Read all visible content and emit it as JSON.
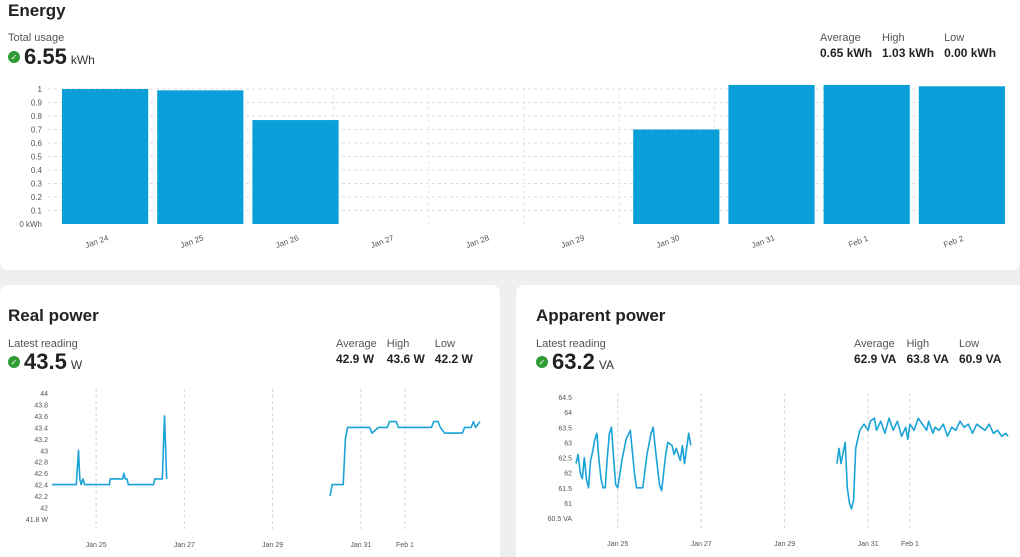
{
  "energy": {
    "title": "Energy",
    "total_label": "Total usage",
    "total_value": "6.55",
    "total_unit": "kWh",
    "stats": [
      {
        "label": "Average",
        "value": "0.65 kWh"
      },
      {
        "label": "High",
        "value": "1.03 kWh"
      },
      {
        "label": "Low",
        "value": "0.00 kWh"
      }
    ]
  },
  "real_power": {
    "title": "Real power",
    "latest_label": "Latest reading",
    "latest_value": "43.5",
    "latest_unit": "W",
    "stats": [
      {
        "label": "Average",
        "value": "42.9 W"
      },
      {
        "label": "High",
        "value": "43.6 W"
      },
      {
        "label": "Low",
        "value": "42.2 W"
      }
    ]
  },
  "apparent_power": {
    "title": "Apparent power",
    "latest_label": "Latest reading",
    "latest_value": "63.2",
    "latest_unit": "VA",
    "stats": [
      {
        "label": "Average",
        "value": "62.9 VA"
      },
      {
        "label": "High",
        "value": "63.8 VA"
      },
      {
        "label": "Low",
        "value": "60.9 VA"
      }
    ]
  },
  "colors": {
    "bar": "#0a9fd8",
    "line": "#1aa3d8",
    "status_ok": "#2e9b34"
  },
  "chart_data": [
    {
      "id": "energy",
      "type": "bar",
      "categories": [
        "Jan 24",
        "Jan 25",
        "Jan 26",
        "Jan 27",
        "Jan 28",
        "Jan 29",
        "Jan 30",
        "Jan 31",
        "Feb 1",
        "Feb 2"
      ],
      "values": [
        1.0,
        0.99,
        0.77,
        0,
        0,
        0,
        0.7,
        1.03,
        1.03,
        1.02
      ],
      "yticks": [
        "0 kWh",
        "0.1",
        "0.2",
        "0.3",
        "0.4",
        "0.5",
        "0.6",
        "0.7",
        "0.8",
        "0.9",
        "1"
      ],
      "ylim": [
        0,
        1.0
      ],
      "grid": true
    },
    {
      "id": "real_power",
      "type": "line",
      "xticks": [
        {
          "t": 1,
          "label": "Jan 25"
        },
        {
          "t": 3,
          "label": "Jan 27"
        },
        {
          "t": 5,
          "label": "Jan 29"
        },
        {
          "t": 7,
          "label": "Jan 31"
        },
        {
          "t": 8,
          "label": "Feb 1"
        }
      ],
      "yticks": [
        "41.8 W",
        "42",
        "42.2",
        "42.4",
        "42.6",
        "42.8",
        "43",
        "43.2",
        "43.4",
        "43.6",
        "43.8",
        "44"
      ],
      "ylim": [
        41.8,
        44
      ],
      "segments": [
        [
          [
            0,
            42.4
          ],
          [
            0.55,
            42.4
          ],
          [
            0.6,
            43.0
          ],
          [
            0.63,
            42.5
          ],
          [
            0.66,
            42.4
          ],
          [
            0.7,
            42.5
          ],
          [
            0.74,
            42.4
          ],
          [
            1.3,
            42.4
          ],
          [
            1.32,
            42.5
          ],
          [
            1.6,
            42.5
          ],
          [
            1.63,
            42.6
          ],
          [
            1.66,
            42.5
          ],
          [
            1.7,
            42.5
          ],
          [
            1.73,
            42.4
          ],
          [
            2.3,
            42.4
          ],
          [
            2.33,
            42.5
          ],
          [
            2.5,
            42.5
          ],
          [
            2.55,
            43.6
          ],
          [
            2.6,
            42.5
          ]
        ],
        [
          [
            6.3,
            42.2
          ],
          [
            6.35,
            42.4
          ],
          [
            6.6,
            42.4
          ],
          [
            6.65,
            43.2
          ],
          [
            6.7,
            43.4
          ],
          [
            7.2,
            43.4
          ],
          [
            7.25,
            43.3
          ],
          [
            7.4,
            43.4
          ],
          [
            7.6,
            43.4
          ],
          [
            7.65,
            43.5
          ],
          [
            7.8,
            43.5
          ],
          [
            7.85,
            43.4
          ],
          [
            8.6,
            43.4
          ],
          [
            8.65,
            43.5
          ],
          [
            8.75,
            43.5
          ],
          [
            8.8,
            43.4
          ],
          [
            8.9,
            43.3
          ],
          [
            9.3,
            43.3
          ],
          [
            9.35,
            43.4
          ],
          [
            9.5,
            43.4
          ],
          [
            9.55,
            43.5
          ],
          [
            9.6,
            43.4
          ],
          [
            9.7,
            43.5
          ]
        ]
      ]
    },
    {
      "id": "apparent_power",
      "type": "line",
      "xticks": [
        {
          "t": 1,
          "label": "Jan 25"
        },
        {
          "t": 3,
          "label": "Jan 27"
        },
        {
          "t": 5,
          "label": "Jan 29"
        },
        {
          "t": 7,
          "label": "Jan 31"
        },
        {
          "t": 8,
          "label": "Feb 1"
        }
      ],
      "yticks": [
        "60.5 VA",
        "61",
        "61.5",
        "62",
        "62.5",
        "63",
        "63.5",
        "64",
        "64.5"
      ],
      "ylim": [
        60.5,
        64.5
      ],
      "segments": [
        [
          [
            0,
            62.3
          ],
          [
            0.05,
            62.6
          ],
          [
            0.1,
            62.0
          ],
          [
            0.15,
            61.8
          ],
          [
            0.2,
            62.5
          ],
          [
            0.25,
            61.8
          ],
          [
            0.3,
            61.5
          ],
          [
            0.35,
            62.4
          ],
          [
            0.4,
            62.7
          ],
          [
            0.45,
            63.1
          ],
          [
            0.5,
            63.3
          ],
          [
            0.55,
            62.4
          ],
          [
            0.6,
            61.8
          ],
          [
            0.65,
            61.5
          ],
          [
            0.7,
            61.5
          ],
          [
            0.75,
            62.5
          ],
          [
            0.8,
            63.3
          ],
          [
            0.85,
            63.5
          ],
          [
            0.9,
            62.5
          ],
          [
            0.95,
            61.6
          ],
          [
            1.0,
            61.5
          ],
          [
            1.1,
            62.4
          ],
          [
            1.2,
            63.1
          ],
          [
            1.3,
            63.4
          ],
          [
            1.4,
            62.0
          ],
          [
            1.45,
            61.5
          ],
          [
            1.6,
            61.5
          ],
          [
            1.7,
            62.6
          ],
          [
            1.8,
            63.3
          ],
          [
            1.85,
            63.5
          ],
          [
            1.9,
            62.8
          ],
          [
            2.0,
            61.6
          ],
          [
            2.05,
            61.4
          ],
          [
            2.15,
            62.6
          ],
          [
            2.2,
            63.0
          ],
          [
            2.3,
            62.9
          ],
          [
            2.35,
            62.6
          ],
          [
            2.4,
            62.8
          ],
          [
            2.5,
            62.4
          ],
          [
            2.55,
            62.9
          ],
          [
            2.6,
            62.3
          ],
          [
            2.7,
            63.3
          ],
          [
            2.75,
            62.9
          ]
        ],
        [
          [
            6.25,
            62.3
          ],
          [
            6.3,
            62.8
          ],
          [
            6.35,
            62.3
          ],
          [
            6.45,
            63.0
          ],
          [
            6.5,
            61.5
          ],
          [
            6.55,
            61.0
          ],
          [
            6.6,
            60.8
          ],
          [
            6.65,
            61.1
          ],
          [
            6.7,
            62.8
          ],
          [
            6.8,
            63.4
          ],
          [
            6.9,
            63.6
          ],
          [
            7.0,
            63.4
          ],
          [
            7.05,
            63.7
          ],
          [
            7.15,
            63.8
          ],
          [
            7.2,
            63.4
          ],
          [
            7.3,
            63.7
          ],
          [
            7.4,
            63.3
          ],
          [
            7.5,
            63.8
          ],
          [
            7.6,
            63.4
          ],
          [
            7.7,
            63.7
          ],
          [
            7.8,
            63.2
          ],
          [
            7.9,
            63.5
          ],
          [
            7.95,
            63.1
          ],
          [
            8.0,
            63.6
          ],
          [
            8.1,
            63.4
          ],
          [
            8.2,
            63.8
          ],
          [
            8.3,
            63.6
          ],
          [
            8.4,
            63.4
          ],
          [
            8.45,
            63.7
          ],
          [
            8.55,
            63.3
          ],
          [
            8.6,
            63.5
          ],
          [
            8.7,
            63.4
          ],
          [
            8.8,
            63.6
          ],
          [
            8.9,
            63.2
          ],
          [
            9.0,
            63.5
          ],
          [
            9.1,
            63.4
          ],
          [
            9.2,
            63.7
          ],
          [
            9.3,
            63.5
          ],
          [
            9.4,
            63.6
          ],
          [
            9.5,
            63.3
          ],
          [
            9.6,
            63.6
          ],
          [
            9.7,
            63.5
          ],
          [
            9.8,
            63.4
          ],
          [
            9.9,
            63.6
          ],
          [
            10.0,
            63.3
          ],
          [
            10.1,
            63.4
          ],
          [
            10.2,
            63.2
          ],
          [
            10.3,
            63.3
          ],
          [
            10.35,
            63.2
          ]
        ]
      ]
    }
  ]
}
